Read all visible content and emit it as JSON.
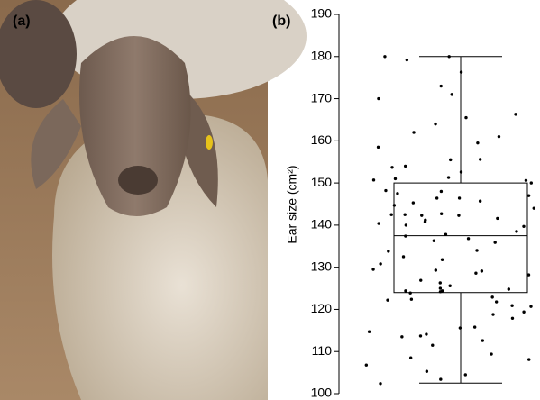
{
  "panel_a": {
    "label": "(a)"
  },
  "chart_data": {
    "type": "box",
    "label": "(b)",
    "y_label": "Ear size (cm²)",
    "ylim": [
      100,
      190
    ],
    "yticks": [
      100,
      110,
      120,
      130,
      140,
      150,
      160,
      170,
      180,
      190
    ],
    "box": {
      "min": 102.5,
      "q1": 124,
      "median": 137.5,
      "q3": 150,
      "max": 180
    },
    "points": [
      180,
      176.3,
      180,
      179.2,
      173,
      171,
      170,
      166.3,
      165.5,
      164,
      162,
      161,
      159.5,
      158.5,
      155.5,
      154,
      155.6,
      153.7,
      152.6,
      151.3,
      151,
      150.7,
      150.6,
      150,
      148.2,
      148,
      147,
      147.5,
      146.4,
      146.4,
      145.7,
      145.3,
      144.7,
      144,
      142.7,
      142.5,
      142.3,
      142.3,
      142.5,
      141.6,
      141.2,
      140.8,
      140.4,
      139.7,
      140,
      138.5,
      137.8,
      137.4,
      136.8,
      136.3,
      135.9,
      134,
      133.8,
      132.5,
      131.8,
      130.8,
      129.5,
      129.3,
      129.1,
      128.6,
      128.2,
      126.9,
      126.3,
      125.6,
      125,
      124.8,
      124.4,
      124.2,
      123.9,
      124.4,
      122.9,
      122.2,
      122.4,
      121.8,
      120.9,
      120.7,
      119.4,
      117.9,
      118.8,
      115.8,
      115.6,
      114.7,
      113.7,
      114.1,
      113.5,
      111.5,
      112.6,
      109.4,
      108.5,
      108.1,
      106.8,
      105.3,
      104.5,
      103.4,
      102.4
    ],
    "color": "#000000"
  }
}
